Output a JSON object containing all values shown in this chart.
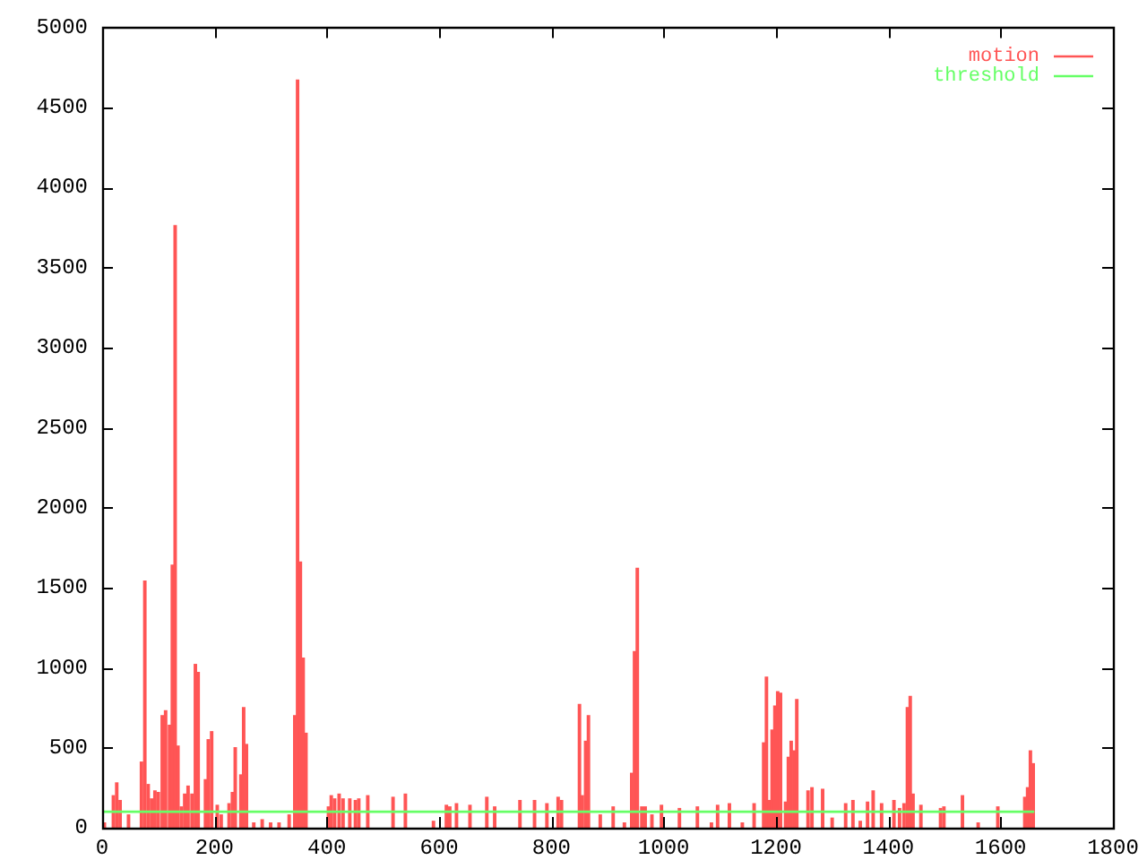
{
  "chart_data": {
    "type": "bar",
    "xlim": [
      0,
      1800
    ],
    "xticks": [
      0,
      200,
      400,
      600,
      800,
      1000,
      1200,
      1400,
      1600,
      1800
    ],
    "ylim": [
      0,
      5000
    ],
    "yticks": [
      0,
      500,
      1000,
      1500,
      2000,
      2500,
      3000,
      3500,
      4000,
      4500,
      5000
    ],
    "legend": "top right",
    "series": [
      {
        "name": "motion",
        "color": "#ff5555",
        "x": [
          4,
          20,
          26,
          32,
          47,
          70,
          76,
          82,
          88,
          94,
          100,
          107,
          113,
          120,
          125,
          130,
          135,
          141,
          147,
          153,
          160,
          166,
          171,
          184,
          189,
          195,
          205,
          212,
          226,
          232,
          237,
          247,
          252,
          257,
          270,
          285,
          300,
          315,
          333,
          343,
          348,
          353,
          358,
          363,
          403,
          408,
          414,
          422,
          429,
          441,
          451,
          457,
          473,
          518,
          540,
          590,
          613,
          619,
          631,
          655,
          685,
          699,
          744,
          770,
          792,
          812,
          818,
          850,
          855,
          861,
          866,
          887,
          910,
          930,
          943,
          948,
          953,
          961,
          967,
          979,
          996,
          1028,
          1060,
          1085,
          1096,
          1117,
          1140,
          1161,
          1178,
          1183,
          1188,
          1193,
          1198,
          1203,
          1208,
          1217,
          1222,
          1227,
          1232,
          1237,
          1257,
          1264,
          1283,
          1300,
          1324,
          1337,
          1350,
          1363,
          1373,
          1388,
          1410,
          1420,
          1428,
          1434,
          1439,
          1444,
          1458,
          1493,
          1499,
          1532,
          1560,
          1595,
          1643,
          1648,
          1653,
          1658
        ],
        "values": [
          30,
          200,
          280,
          170,
          80,
          410,
          1540,
          270,
          180,
          230,
          220,
          700,
          730,
          640,
          1640,
          3760,
          510,
          130,
          210,
          260,
          210,
          1020,
          970,
          300,
          550,
          600,
          140,
          80,
          150,
          220,
          500,
          330,
          750,
          520,
          30,
          50,
          30,
          30,
          80,
          700,
          4670,
          1660,
          1060,
          590,
          130,
          200,
          180,
          210,
          180,
          180,
          170,
          180,
          200,
          190,
          210,
          40,
          140,
          130,
          150,
          140,
          190,
          130,
          170,
          170,
          150,
          190,
          170,
          770,
          200,
          540,
          700,
          80,
          130,
          30,
          340,
          1100,
          1620,
          130,
          130,
          80,
          140,
          120,
          130,
          30,
          140,
          150,
          30,
          150,
          530,
          940,
          170,
          610,
          760,
          850,
          840,
          160,
          440,
          540,
          480,
          800,
          230,
          250,
          240,
          60,
          150,
          170,
          40,
          160,
          230,
          150,
          170,
          120,
          150,
          750,
          820,
          210,
          140,
          120,
          130,
          200,
          30,
          130,
          190,
          250,
          480,
          400
        ]
      },
      {
        "name": "threshold",
        "type": "line",
        "color": "#66ff66",
        "x": [
          0,
          1660
        ],
        "values": [
          100,
          100
        ]
      }
    ]
  }
}
